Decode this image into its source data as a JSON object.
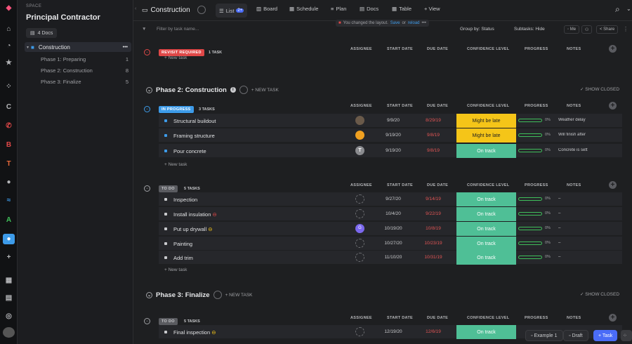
{
  "sidebar": {
    "space_label": "SPACE",
    "title": "Principal Contractor",
    "docs_label": "4 Docs",
    "folder": {
      "label": "Construction",
      "more": "•••"
    },
    "items": [
      {
        "label": "Phase 1: Preparing",
        "count": "1"
      },
      {
        "label": "Phase 2: Construction",
        "count": "8"
      },
      {
        "label": "Phase 3: Finalize",
        "count": "5"
      }
    ]
  },
  "header": {
    "title": "Construction",
    "tabs": [
      {
        "label": "List",
        "badge": "2+"
      },
      {
        "label": "Board"
      },
      {
        "label": "Schedule"
      },
      {
        "label": "Plan"
      },
      {
        "label": "Docs"
      },
      {
        "label": "Table"
      },
      {
        "label": "+ View"
      }
    ]
  },
  "filterbar": {
    "search_placeholder": "Filter by task name...",
    "notice": "You changed the layout.",
    "save": "Save",
    "or": "or",
    "reload": "reload",
    "group_by": "Group by: Status",
    "subtasks": "Subtasks: Hide",
    "me": "Me",
    "share": "Share"
  },
  "columns": {
    "assignee": "ASSIGNEE",
    "start": "START DATE",
    "due": "DUE DATE",
    "confidence": "CONFIDENCE LEVEL",
    "progress": "PROGRESS",
    "notes": "NOTES"
  },
  "revisit": {
    "status": "REVISIT REQUIRED",
    "count": "1 TASK",
    "new_task": "+ New task"
  },
  "phase2": {
    "title": "Phase 2: Construction",
    "new_task": "+ NEW TASK",
    "show_closed": "SHOW CLOSED",
    "groups": [
      {
        "status": "IN PROGRESS",
        "count": "3 TASKS",
        "new_task": "+ New task",
        "rows": [
          {
            "name": "Structural buildout",
            "start": "9/9/20",
            "due": "8/29/19",
            "conf": "Might be late",
            "pct": "0%",
            "note": "Weather delay"
          },
          {
            "name": "Framing structure",
            "start": "9/19/20",
            "due": "9/8/19",
            "conf": "Might be late",
            "pct": "0%",
            "note": "Will finish after"
          },
          {
            "name": "Pour concrete",
            "start": "9/19/20",
            "due": "9/8/19",
            "conf": "On track",
            "pct": "0%",
            "note": "Concrete is sett",
            "avatar": "T"
          }
        ]
      },
      {
        "status": "TO DO",
        "count": "5 TASKS",
        "new_task": "+ New task",
        "rows": [
          {
            "name": "Inspection",
            "start": "9/27/20",
            "due": "9/14/19",
            "conf": "On track",
            "pct": "0%",
            "note": "–"
          },
          {
            "name": "Install insulation",
            "start": "10/4/20",
            "due": "9/22/19",
            "conf": "On track",
            "pct": "0%",
            "note": "–"
          },
          {
            "name": "Put up drywall",
            "start": "10/19/20",
            "due": "10/8/19",
            "conf": "On track",
            "pct": "0%",
            "note": "–",
            "avatar": "G"
          },
          {
            "name": "Painting",
            "start": "10/27/20",
            "due": "10/23/19",
            "conf": "On track",
            "pct": "0%",
            "note": "–"
          },
          {
            "name": "Add trim",
            "start": "11/10/20",
            "due": "10/31/19",
            "conf": "On track",
            "pct": "0%",
            "note": "–"
          }
        ]
      }
    ]
  },
  "phase3": {
    "title": "Phase 3: Finalize",
    "new_task": "+ NEW TASK",
    "show_closed": "SHOW CLOSED",
    "status": "TO DO",
    "count": "5 TASKS",
    "rows": [
      {
        "name": "Final inspection",
        "start": "12/19/20",
        "due": "12/6/19",
        "conf": "On track"
      }
    ]
  },
  "footer": {
    "example": "Example 1",
    "draft": "Draft",
    "task": "+ Task"
  },
  "colors": {
    "late": "#f5c518",
    "ontrack": "#4fbf96",
    "revisit": "#e04848",
    "inprogress": "#3d9be9",
    "todo": "#9fa0a4",
    "overdue": "#e25555"
  }
}
